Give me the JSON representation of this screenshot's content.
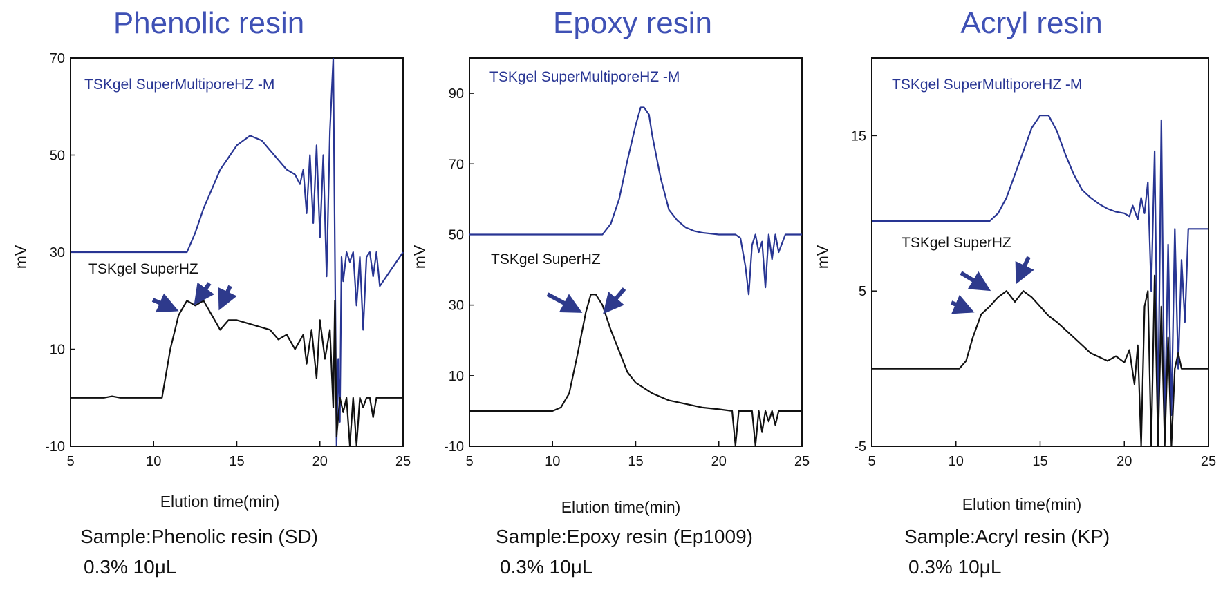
{
  "colors": {
    "blue_trace": "#283593",
    "black_trace": "#111111",
    "title": "#3f51b5",
    "arrow": "#2e3a8c"
  },
  "chart_data": [
    {
      "type": "line",
      "title": "Phenolic resin",
      "xlabel": "Elution time(min)",
      "ylabel": "mV",
      "xlim": [
        5,
        25
      ],
      "ylim": [
        -10,
        70
      ],
      "xticks": [
        5,
        10,
        15,
        20,
        25
      ],
      "yticks": [
        -10,
        10,
        30,
        50,
        70
      ],
      "grid": false,
      "series": [
        {
          "name": "TSKgel SuperMultiporeHZ -M",
          "color": "#283593",
          "x": [
            5,
            12,
            12.5,
            13,
            14,
            15,
            15.8,
            16.5,
            17,
            17.5,
            18,
            18.5,
            18.8,
            19,
            19.2,
            19.4,
            19.6,
            19.8,
            20,
            20.2,
            20.4,
            20.6,
            20.8,
            20.9,
            21,
            21.1,
            21.2,
            21.3,
            21.4,
            21.6,
            21.8,
            22,
            22.2,
            22.4,
            22.6,
            22.8,
            23,
            23.2,
            23.4,
            23.6,
            25
          ],
          "y": [
            30,
            30,
            34,
            39,
            47,
            52,
            54,
            53,
            51,
            49,
            47,
            46,
            44,
            47,
            38,
            50,
            36,
            52,
            33,
            50,
            25,
            55,
            90,
            30,
            -10,
            8,
            -5,
            29,
            24,
            30,
            28,
            30,
            19,
            29,
            14,
            29,
            30,
            25,
            30,
            23,
            30
          ]
        },
        {
          "name": "TSKgel SuperHZ",
          "color": "#111111",
          "x": [
            5,
            7,
            7.5,
            8,
            10.5,
            11,
            11.5,
            12,
            12.5,
            13,
            13.5,
            14,
            14.5,
            15,
            16,
            17,
            17.5,
            18,
            18.5,
            19,
            19.2,
            19.5,
            19.8,
            20,
            20.3,
            20.6,
            20.8,
            20.9,
            21,
            21.2,
            21.4,
            21.6,
            21.8,
            22,
            22.2,
            22.4,
            22.6,
            22.8,
            23,
            23.2,
            23.4,
            25
          ],
          "y": [
            0,
            0,
            0.3,
            0,
            0,
            10,
            17,
            20,
            19,
            20,
            17,
            14,
            16,
            16,
            15,
            14,
            12,
            13,
            10,
            13,
            7,
            14,
            4,
            16,
            8,
            14,
            -2,
            20,
            -8,
            0,
            -3,
            0,
            -10,
            0,
            -12,
            0,
            -2,
            0,
            0,
            -4,
            0,
            0
          ]
        }
      ],
      "annotations": [
        {
          "text": "TSKgel SuperMultiporeHZ -M",
          "series": 0
        },
        {
          "text": "TSKgel SuperHZ",
          "series": 1
        }
      ]
    },
    {
      "type": "line",
      "title": "Epoxy resin",
      "xlabel": "Elution time(min)",
      "ylabel": "mV",
      "xlim": [
        5,
        25
      ],
      "ylim": [
        -10,
        100
      ],
      "xticks": [
        5,
        10,
        15,
        20,
        25
      ],
      "yticks": [
        -10,
        10,
        30,
        50,
        70,
        90
      ],
      "grid": false,
      "series": [
        {
          "name": "TSKgel SuperMultiporeHZ -M",
          "color": "#283593",
          "x": [
            5,
            13,
            13.5,
            14,
            14.5,
            15,
            15.3,
            15.5,
            15.8,
            16,
            16.5,
            17,
            17.5,
            18,
            18.5,
            19,
            20,
            21,
            21.3,
            21.6,
            21.8,
            22,
            22.2,
            22.4,
            22.6,
            22.8,
            23,
            23.2,
            23.4,
            23.6,
            24,
            25
          ],
          "y": [
            50,
            50,
            53,
            60,
            71,
            81,
            86,
            86,
            84,
            78,
            66,
            57,
            54,
            52,
            51,
            50.5,
            50,
            50,
            49,
            41,
            33,
            47,
            50,
            45,
            48,
            35,
            50,
            43,
            50,
            45,
            50,
            50
          ]
        },
        {
          "name": "TSKgel SuperHZ",
          "color": "#111111",
          "x": [
            5,
            10,
            10.5,
            11,
            11.5,
            12,
            12.3,
            12.6,
            13,
            13.5,
            14,
            14.5,
            15,
            16,
            17,
            18,
            19,
            20,
            20.8,
            21,
            21.2,
            21.5,
            22,
            22.2,
            22.4,
            22.6,
            22.8,
            23,
            23.2,
            23.4,
            23.6,
            25
          ],
          "y": [
            0,
            0,
            1,
            5,
            16,
            28,
            33,
            33,
            30,
            23,
            17,
            11,
            8,
            5,
            3,
            2,
            1,
            0.5,
            0,
            -10,
            0,
            0,
            0,
            -10,
            0,
            -6,
            0,
            -3,
            0,
            -4,
            0,
            0
          ]
        }
      ],
      "annotations": [
        {
          "text": "TSKgel SuperMultiporeHZ -M",
          "series": 0
        },
        {
          "text": "TSKgel SuperHZ",
          "series": 1
        }
      ]
    },
    {
      "type": "line",
      "title": "Acryl resin",
      "xlabel": "Elution time(min)",
      "ylabel": "mV",
      "xlim": [
        5,
        25
      ],
      "ylim": [
        -5,
        20
      ],
      "xticks": [
        5,
        10,
        15,
        20,
        25
      ],
      "yticks": [
        -5,
        5,
        15
      ],
      "grid": false,
      "series": [
        {
          "name": "TSKgel SuperMultiporeHZ -M",
          "color": "#283593",
          "x": [
            5,
            12,
            12.5,
            13,
            13.5,
            14,
            14.5,
            15,
            15.5,
            16,
            16.5,
            17,
            17.5,
            18,
            18.5,
            19,
            19.5,
            20,
            20.3,
            20.5,
            20.8,
            21,
            21.2,
            21.4,
            21.6,
            21.8,
            22,
            22.2,
            22.4,
            22.6,
            22.8,
            23,
            23.2,
            23.4,
            23.6,
            23.8,
            25
          ],
          "y": [
            9.5,
            9.5,
            10,
            11,
            12.5,
            14,
            15.5,
            16.3,
            16.3,
            15.3,
            13.8,
            12.5,
            11.5,
            11,
            10.6,
            10.3,
            10.1,
            10,
            9.8,
            10.5,
            9.6,
            11,
            10,
            12,
            5,
            14,
            -3,
            16,
            -4,
            8,
            -3,
            9,
            0,
            7,
            3,
            9,
            9
          ]
        },
        {
          "name": "TSKgel SuperHZ",
          "color": "#111111",
          "x": [
            5,
            10.2,
            10.6,
            11,
            11.5,
            12,
            12.5,
            13,
            13.5,
            14,
            14.5,
            15,
            15.5,
            16,
            17,
            18,
            19,
            19.5,
            20,
            20.3,
            20.6,
            20.8,
            21,
            21.2,
            21.4,
            21.6,
            21.8,
            22,
            22.2,
            22.4,
            22.6,
            22.8,
            23,
            23.2,
            23.4,
            25
          ],
          "y": [
            0,
            0,
            0.5,
            2,
            3.5,
            4,
            4.6,
            5,
            4.3,
            5,
            4.6,
            4,
            3.4,
            3,
            2,
            1,
            0.5,
            0.8,
            0.4,
            1.2,
            -1,
            1.5,
            -5,
            4,
            5,
            -5,
            6,
            -5,
            4,
            -5,
            2,
            -5,
            0,
            1,
            0,
            0
          ]
        }
      ],
      "annotations": [
        {
          "text": "TSKgel SuperMultiporeHZ -M",
          "series": 0
        },
        {
          "text": "TSKgel SuperHZ",
          "series": 1
        }
      ]
    }
  ],
  "captions": [
    {
      "sample": "Sample:Phenolic resin (SD)",
      "conditions": "0.3% 10μL"
    },
    {
      "sample": "Sample:Epoxy resin (Ep1009)",
      "conditions": "0.3% 10μL"
    },
    {
      "sample": "Sample:Acryl resin (KP)",
      "conditions": "0.3% 10μL"
    }
  ]
}
